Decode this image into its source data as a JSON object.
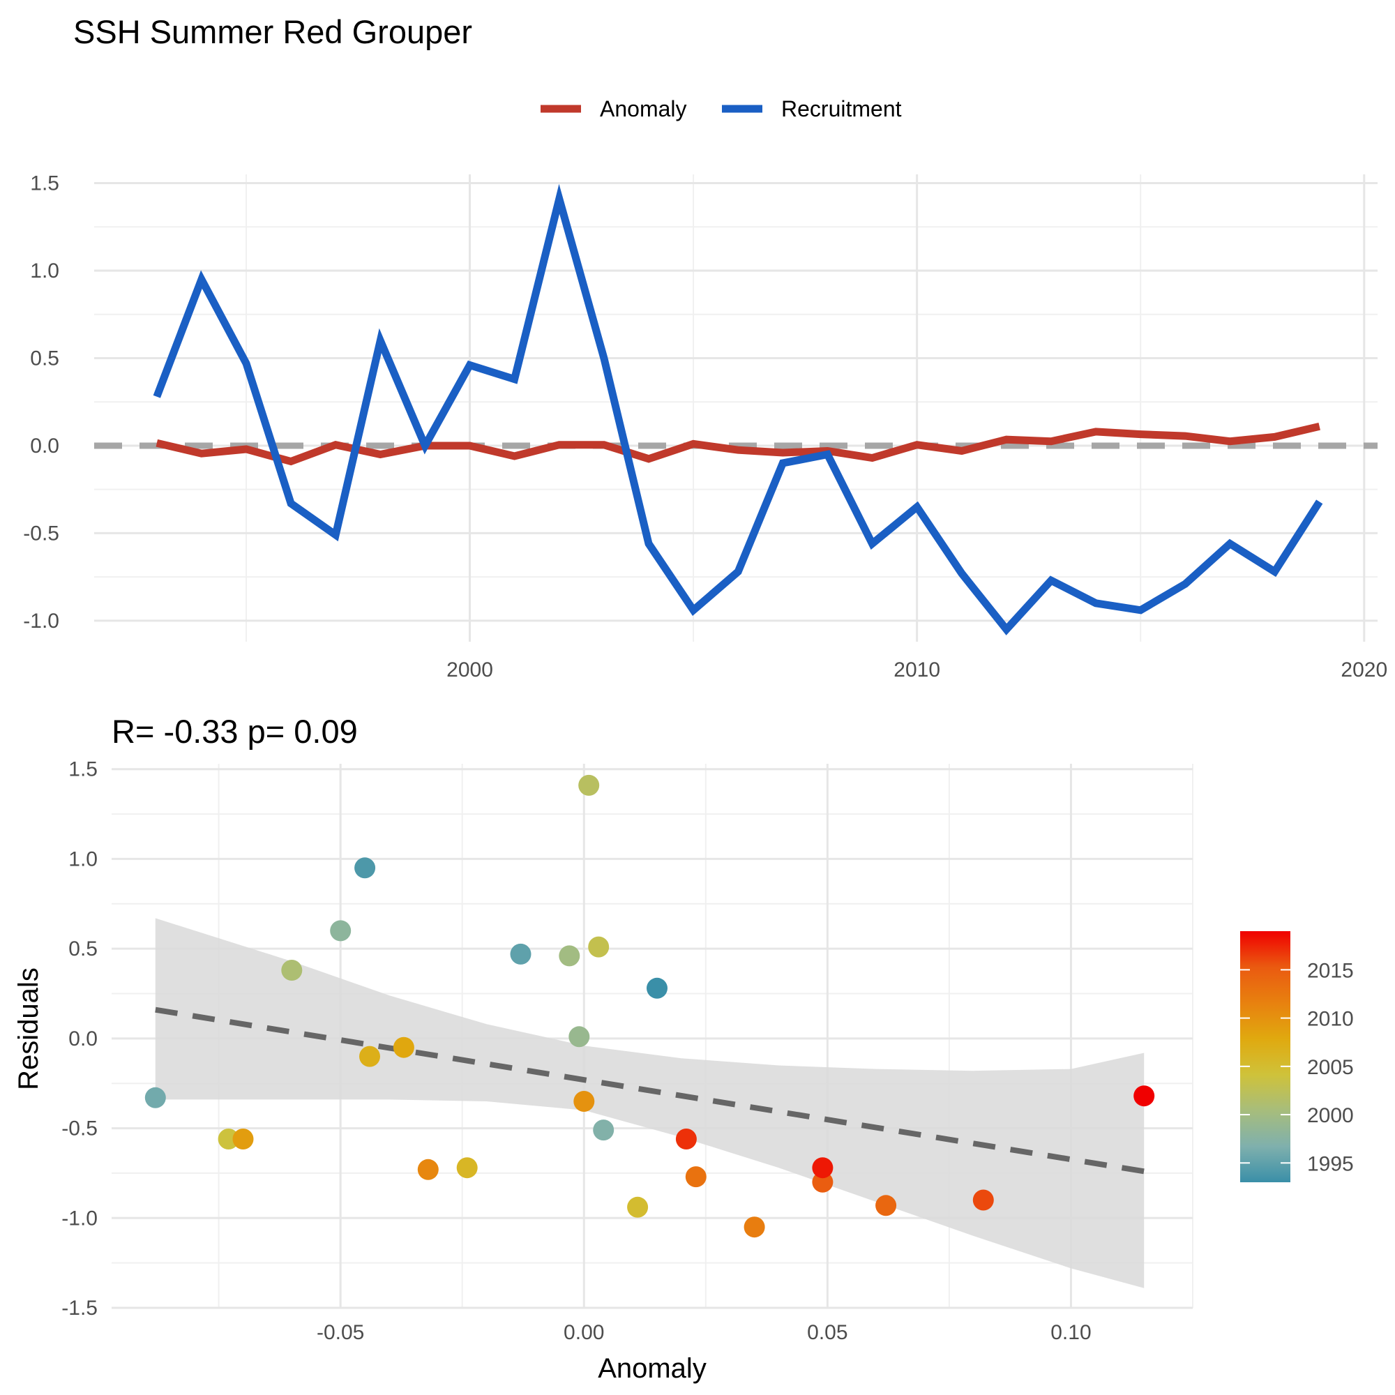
{
  "title": "SSH Summer Red Grouper",
  "colors": {
    "anomaly": "#c0392b",
    "recruitment": "#1a5fc4",
    "zero_line": "#a6a6a6",
    "fit_line": "#666666",
    "ci_band": "#d9d9d9",
    "year_scale": [
      "#3a8fa8",
      "#7fb0ad",
      "#a7bd7c",
      "#cfc23a",
      "#e0a90f",
      "#e8810f",
      "#ea5a10",
      "#f00000"
    ]
  },
  "chart_data": [
    {
      "type": "line",
      "title": "",
      "legend": {
        "placement": "top-center",
        "items": [
          "Anomaly",
          "Recruitment"
        ]
      },
      "xlabel": "",
      "ylabel": "",
      "xlim": [
        1991.6,
        2020.3
      ],
      "ylim": [
        -1.12,
        1.55
      ],
      "x_ticks": [
        2000,
        2010,
        2020
      ],
      "y_ticks": [
        -1.0,
        -0.5,
        0.0,
        0.5,
        1.0,
        1.5
      ],
      "y_tick_labels": [
        "-1.0",
        "-0.5",
        "0.0",
        "0.5",
        "1.0",
        "1.5"
      ],
      "reference_line": {
        "y": 0,
        "style": "dashed"
      },
      "grid": true,
      "x": [
        1993,
        1994,
        1995,
        1996,
        1997,
        1998,
        1999,
        2000,
        2001,
        2002,
        2003,
        2004,
        2005,
        2006,
        2007,
        2008,
        2009,
        2010,
        2011,
        2012,
        2013,
        2014,
        2015,
        2016,
        2017,
        2018,
        2019
      ],
      "series": [
        {
          "name": "Anomaly",
          "values": [
            0.015,
            -0.045,
            -0.02,
            -0.09,
            0.005,
            -0.05,
            0.0,
            0.0,
            -0.06,
            0.005,
            0.005,
            -0.075,
            0.01,
            -0.025,
            -0.04,
            -0.03,
            -0.07,
            0.005,
            -0.03,
            0.035,
            0.025,
            0.08,
            0.065,
            0.055,
            0.025,
            0.05,
            0.11
          ]
        },
        {
          "name": "Recruitment",
          "values": [
            0.28,
            0.95,
            0.47,
            -0.33,
            -0.51,
            0.6,
            0.0,
            0.46,
            0.38,
            1.41,
            0.5,
            -0.56,
            -0.94,
            -0.72,
            -0.1,
            -0.05,
            -0.56,
            -0.35,
            -0.73,
            -1.05,
            -0.77,
            -0.9,
            -0.94,
            -0.79,
            -0.56,
            -0.72,
            -0.32
          ]
        }
      ]
    },
    {
      "type": "scatter",
      "title": "R= -0.33  p= 0.09",
      "xlabel": "Anomaly",
      "ylabel": "Residuals",
      "xlim": [
        -0.097,
        0.125
      ],
      "ylim": [
        -1.5,
        1.53
      ],
      "x_ticks": [
        -0.05,
        0.0,
        0.05,
        0.1
      ],
      "x_tick_labels": [
        "-0.05",
        "0.00",
        "0.05",
        "0.10"
      ],
      "y_ticks": [
        -1.5,
        -1.0,
        -0.5,
        0.0,
        0.5,
        1.0,
        1.5
      ],
      "y_tick_labels": [
        "-1.5",
        "-1.0",
        "-0.5",
        "0.0",
        "0.5",
        "1.0",
        "1.5"
      ],
      "grid": true,
      "colorbar": {
        "placement": "right",
        "min": 1993,
        "max": 2019,
        "ticks": [
          1995,
          2000,
          2005,
          2010,
          2015
        ],
        "tick_labels": [
          "1995",
          "2000",
          "2005",
          "2010",
          "2015"
        ]
      },
      "fit": {
        "type": "linear",
        "style": "dashed",
        "x": [
          -0.088,
          0.115
        ],
        "y": [
          0.16,
          -0.74
        ]
      },
      "ci_band": {
        "x": [
          -0.088,
          -0.06,
          -0.04,
          -0.02,
          0.0,
          0.02,
          0.04,
          0.06,
          0.08,
          0.1,
          0.115
        ],
        "upper": [
          0.67,
          0.43,
          0.24,
          0.08,
          -0.04,
          -0.11,
          -0.15,
          -0.17,
          -0.18,
          -0.17,
          -0.08
        ],
        "lower": [
          -0.34,
          -0.34,
          -0.34,
          -0.35,
          -0.4,
          -0.55,
          -0.72,
          -0.91,
          -1.1,
          -1.28,
          -1.39
        ]
      },
      "points": [
        {
          "year": 1993,
          "x": 0.015,
          "y": 0.28
        },
        {
          "year": 1994,
          "x": -0.045,
          "y": 0.95
        },
        {
          "year": 1995,
          "x": -0.013,
          "y": 0.47
        },
        {
          "year": 1996,
          "x": -0.088,
          "y": -0.33
        },
        {
          "year": 1997,
          "x": 0.004,
          "y": -0.51
        },
        {
          "year": 1998,
          "x": -0.05,
          "y": 0.6
        },
        {
          "year": 1999,
          "x": -0.001,
          "y": 0.01
        },
        {
          "year": 2000,
          "x": -0.003,
          "y": 0.46
        },
        {
          "year": 2001,
          "x": -0.06,
          "y": 0.38
        },
        {
          "year": 2002,
          "x": 0.001,
          "y": 1.41
        },
        {
          "year": 2003,
          "x": 0.003,
          "y": 0.51
        },
        {
          "year": 2004,
          "x": -0.073,
          "y": -0.56
        },
        {
          "year": 2005,
          "x": 0.011,
          "y": -0.94
        },
        {
          "year": 2006,
          "x": -0.024,
          "y": -0.72
        },
        {
          "year": 2007,
          "x": -0.044,
          "y": -0.1
        },
        {
          "year": 2008,
          "x": -0.037,
          "y": -0.05
        },
        {
          "year": 2009,
          "x": -0.07,
          "y": -0.56
        },
        {
          "year": 2010,
          "x": 0.0,
          "y": -0.35
        },
        {
          "year": 2011,
          "x": -0.032,
          "y": -0.73
        },
        {
          "year": 2012,
          "x": 0.035,
          "y": -1.05
        },
        {
          "year": 2013,
          "x": 0.023,
          "y": -0.77
        },
        {
          "year": 2014,
          "x": 0.062,
          "y": -0.93
        },
        {
          "year": 2015,
          "x": 0.049,
          "y": -0.8
        },
        {
          "year": 2016,
          "x": 0.082,
          "y": -0.9
        },
        {
          "year": 2017,
          "x": 0.021,
          "y": -0.56
        },
        {
          "year": 2018,
          "x": 0.049,
          "y": -0.72
        },
        {
          "year": 2019,
          "x": 0.115,
          "y": -0.32
        }
      ]
    }
  ]
}
